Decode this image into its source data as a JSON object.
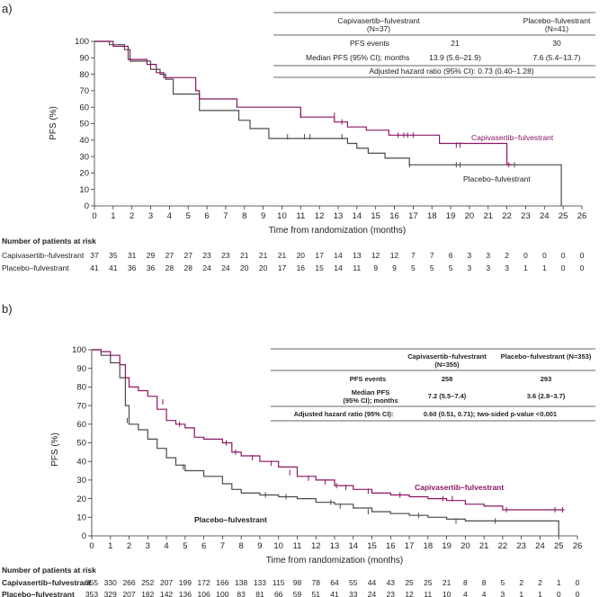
{
  "colors": {
    "cap": "#8c1565",
    "pla": "#4a4a4a",
    "axis": "#333333"
  },
  "chart_data": [
    {
      "panel_label": "a)",
      "type": "line",
      "title": "",
      "xlabel": "Time from randomization (months)",
      "ylabel": "PFS (%)",
      "xlim": [
        0,
        26
      ],
      "ylim": [
        0,
        100
      ],
      "xticks": [
        "0",
        "1",
        "2",
        "3",
        "4",
        "5",
        "6",
        "7",
        "8",
        "9",
        "10",
        "11",
        "12",
        "13",
        "14",
        "15",
        "16",
        "17",
        "18",
        "19",
        "20",
        "21",
        "22",
        "23",
        "24",
        "25",
        "26"
      ],
      "yticks": [
        "0",
        "10",
        "20",
        "30",
        "40",
        "50",
        "60",
        "70",
        "80",
        "90",
        "100"
      ],
      "series": [
        {
          "name": "Capivasertib–fulvestrant",
          "label": "Capivasertib–fulvestrant",
          "color": "#8c1565",
          "steps": [
            [
              0,
              100
            ],
            [
              1,
              97
            ],
            [
              1.8,
              89
            ],
            [
              2.8,
              86
            ],
            [
              3.3,
              81
            ],
            [
              3.7,
              78
            ],
            [
              5.4,
              70
            ],
            [
              5.6,
              65
            ],
            [
              7.6,
              60
            ],
            [
              11,
              54
            ],
            [
              12.8,
              51
            ],
            [
              13.5,
              48
            ],
            [
              14.5,
              46
            ],
            [
              15.7,
              43
            ],
            [
              18.4,
              38
            ],
            [
              22,
              25
            ],
            [
              22.3,
              25
            ]
          ],
          "censors": [
            [
              11,
              55
            ],
            [
              12.8,
              55
            ],
            [
              13.2,
              51
            ],
            [
              16.2,
              43
            ],
            [
              16.5,
              43
            ],
            [
              16.7,
              43
            ],
            [
              17,
              43
            ],
            [
              19.3,
              37
            ],
            [
              19.5,
              37
            ],
            [
              22.1,
              25
            ]
          ]
        },
        {
          "name": "Placebo–fulvestrant",
          "label": "Placebo–fulvestrant",
          "color": "#4a4a4a",
          "steps": [
            [
              0,
              100
            ],
            [
              0.8,
              98
            ],
            [
              1.6,
              95
            ],
            [
              1.9,
              88
            ],
            [
              3,
              83
            ],
            [
              3.5,
              80
            ],
            [
              3.8,
              77
            ],
            [
              4.2,
              68
            ],
            [
              5.6,
              58
            ],
            [
              7.7,
              52
            ],
            [
              8.3,
              47
            ],
            [
              9.3,
              41
            ],
            [
              13.5,
              38
            ],
            [
              14,
              35
            ],
            [
              14.6,
              32
            ],
            [
              15.5,
              29
            ],
            [
              16.8,
              25
            ],
            [
              24.9,
              25
            ],
            [
              24.9,
              0
            ]
          ],
          "censors": [
            [
              10.3,
              42
            ],
            [
              11.2,
              42
            ],
            [
              11.5,
              42
            ],
            [
              13.2,
              42
            ],
            [
              16.8,
              25
            ],
            [
              19.3,
              25
            ],
            [
              19.5,
              25
            ],
            [
              22.4,
              25
            ]
          ]
        }
      ],
      "table": {
        "headers": [
          "Capivasertib–fulvestrant",
          "(N=37)",
          "Placebo–fulvestrant",
          "(N=41)"
        ],
        "rows": [
          {
            "label": "PFS events",
            "cap": "21",
            "pla": "30"
          },
          {
            "label": "Median PFS (95% CI); months",
            "cap": "13.9 (5.6–21.9)",
            "pla": "7.6 (5.4–13.7)"
          }
        ],
        "footer": "Adjusted hazard ratio (95% CI): 0.73 (0.40–1.28)"
      },
      "risk": {
        "title": "Number of patients at risk",
        "rows": [
          {
            "name": "Capivasertib–fulvestrant",
            "values": [
              "37",
              "35",
              "31",
              "29",
              "27",
              "27",
              "23",
              "23",
              "21",
              "21",
              "21",
              "20",
              "17",
              "14",
              "13",
              "12",
              "12",
              "7",
              "7",
              "6",
              "3",
              "3",
              "2",
              "0",
              "0",
              "0",
              "0"
            ]
          },
          {
            "name": "Placebo–fulvestrant",
            "values": [
              "41",
              "41",
              "36",
              "36",
              "28",
              "28",
              "24",
              "24",
              "20",
              "20",
              "17",
              "16",
              "15",
              "14",
              "11",
              "9",
              "9",
              "5",
              "5",
              "5",
              "3",
              "3",
              "3",
              "1",
              "1",
              "0",
              "0"
            ]
          }
        ]
      }
    },
    {
      "panel_label": "b)",
      "type": "line",
      "title": "",
      "xlabel": "Time from randomization (months)",
      "ylabel": "PFS (%)",
      "xlim": [
        0,
        26
      ],
      "ylim": [
        0,
        100
      ],
      "xticks": [
        "0",
        "1",
        "2",
        "3",
        "4",
        "5",
        "6",
        "7",
        "8",
        "9",
        "10",
        "11",
        "12",
        "13",
        "14",
        "15",
        "16",
        "17",
        "18",
        "19",
        "20",
        "21",
        "22",
        "23",
        "24",
        "25",
        "26"
      ],
      "yticks": [
        "0",
        "10",
        "20",
        "30",
        "40",
        "50",
        "60",
        "70",
        "80",
        "90",
        "100"
      ],
      "series": [
        {
          "name": "Capivasertib–fulvestrant",
          "label": "Capivasertib–fulvestrant",
          "color": "#8c1565",
          "steps": [
            [
              0,
              100
            ],
            [
              0.5,
              99
            ],
            [
              1,
              97
            ],
            [
              1.5,
              92
            ],
            [
              1.8,
              85
            ],
            [
              2,
              80
            ],
            [
              2.5,
              78
            ],
            [
              3,
              75
            ],
            [
              3.5,
              68
            ],
            [
              4,
              62
            ],
            [
              4.5,
              60
            ],
            [
              5,
              58
            ],
            [
              5.5,
              53
            ],
            [
              6,
              52
            ],
            [
              7,
              50
            ],
            [
              7.5,
              45
            ],
            [
              8,
              43
            ],
            [
              9,
              40
            ],
            [
              10,
              37
            ],
            [
              11,
              32
            ],
            [
              12,
              30
            ],
            [
              13,
              27
            ],
            [
              14,
              25
            ],
            [
              15,
              23
            ],
            [
              16,
              22
            ],
            [
              17,
              21
            ],
            [
              18,
              20
            ],
            [
              19,
              19
            ],
            [
              20,
              17
            ],
            [
              21,
              16
            ],
            [
              22,
              14
            ],
            [
              25.3,
              14
            ]
          ],
          "censors": [
            [
              3.8,
              72
            ],
            [
              4.7,
              60
            ],
            [
              7.2,
              50
            ],
            [
              7.7,
              45
            ],
            [
              8.6,
              42
            ],
            [
              9.6,
              39
            ],
            [
              10.6,
              34
            ],
            [
              11.6,
              31
            ],
            [
              12.5,
              29
            ],
            [
              13.1,
              27
            ],
            [
              13.6,
              26
            ],
            [
              14.8,
              24
            ],
            [
              16.5,
              22
            ],
            [
              18.8,
              20
            ],
            [
              19.3,
              20
            ],
            [
              22.2,
              14
            ],
            [
              24.8,
              14
            ],
            [
              25.2,
              14
            ]
          ]
        },
        {
          "name": "Placebo–fulvestrant",
          "label": "Placebo–fulvestrant",
          "color": "#4a4a4a",
          "steps": [
            [
              0,
              100
            ],
            [
              0.5,
              97
            ],
            [
              1,
              93
            ],
            [
              1.5,
              85
            ],
            [
              1.8,
              70
            ],
            [
              2,
              60
            ],
            [
              2.5,
              57
            ],
            [
              3,
              52
            ],
            [
              3.5,
              47
            ],
            [
              4,
              42
            ],
            [
              4.5,
              38
            ],
            [
              5,
              35
            ],
            [
              6,
              32
            ],
            [
              7,
              28
            ],
            [
              7.5,
              25
            ],
            [
              8,
              23
            ],
            [
              9,
              22
            ],
            [
              10,
              21
            ],
            [
              11,
              20
            ],
            [
              12,
              18
            ],
            [
              13,
              17
            ],
            [
              14,
              15
            ],
            [
              15,
              13
            ],
            [
              16,
              12
            ],
            [
              17,
              11
            ],
            [
              18,
              10
            ],
            [
              19,
              9
            ],
            [
              20,
              8
            ],
            [
              25,
              8
            ],
            [
              25,
              0
            ]
          ],
          "censors": [
            [
              1.9,
              62
            ],
            [
              4.9,
              37
            ],
            [
              9.3,
              22
            ],
            [
              10.4,
              21
            ],
            [
              12.8,
              18
            ],
            [
              13.3,
              16
            ],
            [
              14.8,
              13
            ],
            [
              17.5,
              11
            ],
            [
              19.5,
              8
            ],
            [
              21.6,
              8
            ]
          ]
        }
      ],
      "table": {
        "headers": [
          "Capivasertib–fulvestrant",
          "(N=355)",
          "Placebo–fulvestrant (N=353)"
        ],
        "rows": [
          {
            "label": "PFS events",
            "cap": "258",
            "pla": "293"
          },
          {
            "label": "Median PFS",
            "label2": "(95% CI); months",
            "cap": "7.2 (5.5–7.4)",
            "pla": "3.6 (2.8–3.7)"
          }
        ],
        "footer_label": "Adjusted hazard ratio (95% CI):",
        "footer_value": "0.60 (0.51, 0.71); two-sided p-value <0.001"
      },
      "risk": {
        "title": "Number of patients at risk",
        "rows": [
          {
            "name": "Capivasertib–fulvestrant",
            "values": [
              "355",
              "330",
              "266",
              "252",
              "207",
              "199",
              "172",
              "166",
              "138",
              "133",
              "115",
              "98",
              "78",
              "64",
              "55",
              "44",
              "43",
              "25",
              "25",
              "21",
              "8",
              "8",
              "5",
              "2",
              "2",
              "1",
              "0"
            ]
          },
          {
            "name": "Placebo–fulvestrant",
            "values": [
              "353",
              "329",
              "207",
              "182",
              "142",
              "136",
              "106",
              "100",
              "83",
              "81",
              "66",
              "59",
              "51",
              "41",
              "33",
              "24",
              "23",
              "12",
              "11",
              "10",
              "4",
              "4",
              "3",
              "1",
              "1",
              "0",
              "0"
            ]
          }
        ]
      }
    }
  ]
}
